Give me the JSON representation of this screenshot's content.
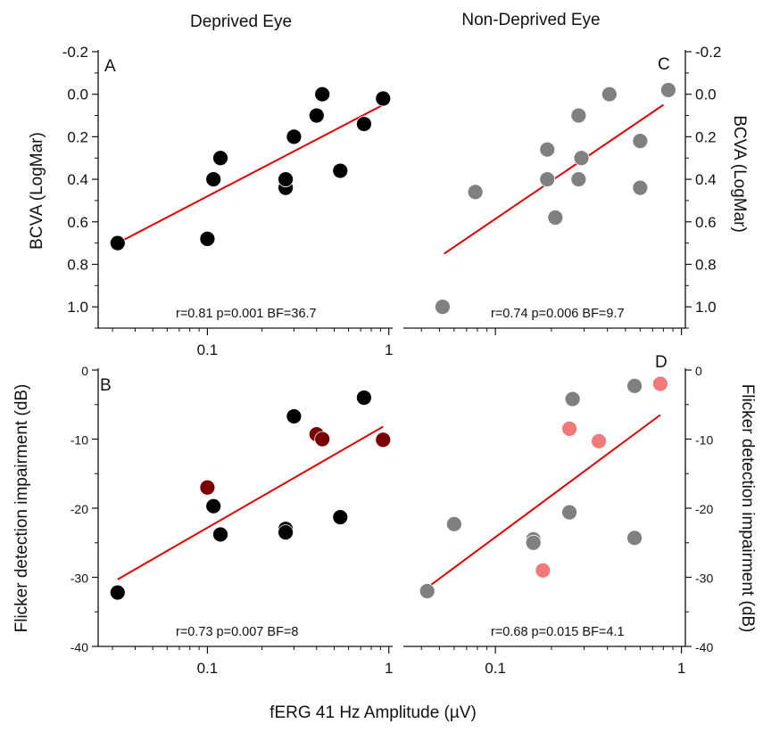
{
  "figure": {
    "col_titles": [
      "Deprived Eye",
      "Non-Deprived Eye"
    ],
    "xlabel": "fERG 41 Hz Amplitude (µV)",
    "ylabel_top": "BCVA (LogMar)",
    "ylabel_bottom": "Flicker detection impairment (dB)",
    "colors": {
      "black": "#000000",
      "gray": "#808080",
      "darkred": "#7a0000",
      "pink": "#f07a7a",
      "fit": "#e00000"
    }
  },
  "chart_data": [
    {
      "panel": "A",
      "type": "scatter",
      "x_scale": "log",
      "xlim": [
        0.025,
        1.05
      ],
      "x_ticks": [
        "0.1",
        "1"
      ],
      "ylim": [
        1.1,
        -0.2
      ],
      "y_ticks": [
        "-0.2",
        "0.0",
        "0.2",
        "0.4",
        "0.6",
        "0.8",
        "1.0"
      ],
      "ylabel": "BCVA (LogMar)",
      "stats": "r=0.81 p=0.001 BF=36.7",
      "points": [
        {
          "x": 0.032,
          "y": 0.7,
          "color": "black"
        },
        {
          "x": 0.1,
          "y": 0.68,
          "color": "black"
        },
        {
          "x": 0.108,
          "y": 0.4,
          "color": "black"
        },
        {
          "x": 0.118,
          "y": 0.3,
          "color": "black"
        },
        {
          "x": 0.27,
          "y": 0.44,
          "color": "black"
        },
        {
          "x": 0.27,
          "y": 0.4,
          "color": "black"
        },
        {
          "x": 0.3,
          "y": 0.2,
          "color": "black"
        },
        {
          "x": 0.4,
          "y": 0.1,
          "color": "black"
        },
        {
          "x": 0.43,
          "y": 0.0,
          "color": "black"
        },
        {
          "x": 0.54,
          "y": 0.36,
          "color": "black"
        },
        {
          "x": 0.73,
          "y": 0.14,
          "color": "black"
        },
        {
          "x": 0.93,
          "y": 0.02,
          "color": "black"
        }
      ],
      "fit": {
        "x": [
          0.032,
          0.93
        ],
        "y": [
          0.7,
          0.05
        ]
      }
    },
    {
      "panel": "C",
      "type": "scatter",
      "x_scale": "log",
      "xlim": [
        0.032,
        1.05
      ],
      "x_ticks": [],
      "ylim": [
        1.1,
        -0.2
      ],
      "y_ticks": [
        "-0.2",
        "0.0",
        "0.2",
        "0.4",
        "0.6",
        "0.8",
        "1.0"
      ],
      "ylabel": "BCVA (LogMar)",
      "stats": "r=0.74 p=0.006 BF=9.7",
      "points": [
        {
          "x": 0.052,
          "y": 1.0,
          "color": "gray"
        },
        {
          "x": 0.078,
          "y": 0.46,
          "color": "gray"
        },
        {
          "x": 0.19,
          "y": 0.26,
          "color": "gray"
        },
        {
          "x": 0.19,
          "y": 0.4,
          "color": "gray"
        },
        {
          "x": 0.21,
          "y": 0.58,
          "color": "gray"
        },
        {
          "x": 0.28,
          "y": 0.1,
          "color": "gray"
        },
        {
          "x": 0.28,
          "y": 0.4,
          "color": "gray"
        },
        {
          "x": 0.29,
          "y": 0.3,
          "color": "gray"
        },
        {
          "x": 0.41,
          "y": 0.0,
          "color": "gray"
        },
        {
          "x": 0.6,
          "y": 0.22,
          "color": "gray"
        },
        {
          "x": 0.6,
          "y": 0.44,
          "color": "gray"
        },
        {
          "x": 0.85,
          "y": -0.02,
          "color": "gray"
        }
      ],
      "fit": {
        "x": [
          0.053,
          0.8
        ],
        "y": [
          0.75,
          0.05
        ]
      }
    },
    {
      "panel": "B",
      "type": "scatter",
      "x_scale": "log",
      "xlim": [
        0.025,
        1.05
      ],
      "x_ticks": [
        "0.1",
        "1"
      ],
      "ylim": [
        -40,
        0
      ],
      "y_ticks": [
        "0",
        "-10",
        "-20",
        "-30",
        "-40"
      ],
      "ylabel": "Flicker detection impairment (dB)",
      "stats": "r=0.73 p=0.007 BF=8",
      "points": [
        {
          "x": 0.032,
          "y": -32.2,
          "color": "black"
        },
        {
          "x": 0.1,
          "y": -17.0,
          "color": "darkred"
        },
        {
          "x": 0.108,
          "y": -19.7,
          "color": "black"
        },
        {
          "x": 0.118,
          "y": -23.8,
          "color": "black"
        },
        {
          "x": 0.27,
          "y": -23.0,
          "color": "black"
        },
        {
          "x": 0.27,
          "y": -23.5,
          "color": "black"
        },
        {
          "x": 0.3,
          "y": -6.7,
          "color": "black"
        },
        {
          "x": 0.4,
          "y": -9.3,
          "color": "darkred"
        },
        {
          "x": 0.43,
          "y": -10.0,
          "color": "darkred"
        },
        {
          "x": 0.54,
          "y": -21.3,
          "color": "black"
        },
        {
          "x": 0.73,
          "y": -4.0,
          "color": "black"
        },
        {
          "x": 0.93,
          "y": -10.1,
          "color": "darkred"
        }
      ],
      "fit": {
        "x": [
          0.032,
          0.93
        ],
        "y": [
          -30.3,
          -8.2
        ]
      }
    },
    {
      "panel": "D",
      "type": "scatter",
      "x_scale": "log",
      "xlim": [
        0.032,
        1.05
      ],
      "x_ticks": [
        "0.1",
        "1"
      ],
      "ylim": [
        -40,
        0
      ],
      "y_ticks": [
        "0",
        "-10",
        "-20",
        "-30",
        "-40"
      ],
      "ylabel": "Flicker detection impairment (dB)",
      "stats": "r=0.68 p=0.015 BF=4.1",
      "points": [
        {
          "x": 0.043,
          "y": -32.0,
          "color": "gray"
        },
        {
          "x": 0.06,
          "y": -22.3,
          "color": "gray"
        },
        {
          "x": 0.16,
          "y": -24.5,
          "color": "gray"
        },
        {
          "x": 0.16,
          "y": -25.0,
          "color": "gray"
        },
        {
          "x": 0.18,
          "y": -29.0,
          "color": "pink"
        },
        {
          "x": 0.25,
          "y": -8.5,
          "color": "pink"
        },
        {
          "x": 0.26,
          "y": -4.2,
          "color": "gray"
        },
        {
          "x": 0.25,
          "y": -20.6,
          "color": "gray"
        },
        {
          "x": 0.36,
          "y": -10.3,
          "color": "pink"
        },
        {
          "x": 0.56,
          "y": -24.3,
          "color": "gray"
        },
        {
          "x": 0.56,
          "y": -2.3,
          "color": "gray"
        },
        {
          "x": 0.77,
          "y": -2.0,
          "color": "pink"
        }
      ],
      "fit": {
        "x": [
          0.043,
          0.77
        ],
        "y": [
          -31.5,
          -6.5
        ]
      }
    }
  ]
}
